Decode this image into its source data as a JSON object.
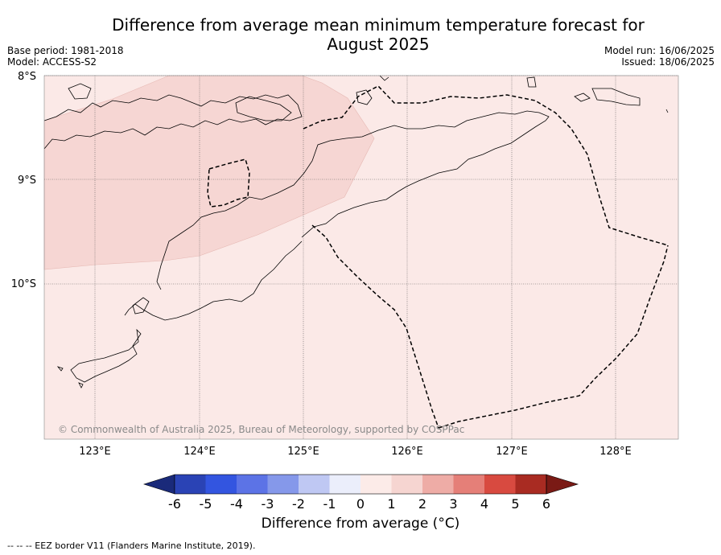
{
  "title": "Difference from average mean minimum temperature forecast for August 2025",
  "title_line1": "Difference from average mean minimum temperature forecast for",
  "title_line2": "August 2025",
  "meta_left": {
    "base_period": "Base period: 1981-2018",
    "model": "Model: ACCESS-S2"
  },
  "meta_right": {
    "model_run": "Model run: 16/06/2025",
    "issued": "Issued: 18/06/2025"
  },
  "map": {
    "lon_ticks": [
      "123°E",
      "124°E",
      "125°E",
      "126°E",
      "127°E",
      "128°E"
    ],
    "lat_ticks": [
      "8°S",
      "9°S",
      "10°S"
    ],
    "copyright": "© Commonwealth of Australia 2025, Bureau of Meteorology, supported by COSPPac",
    "background_color": "#fbe9e7",
    "anomaly_color": "#f6d6d3",
    "background_anomaly_range": "0 to 1",
    "anomaly_patch_range": "1 to 2"
  },
  "colorbar": {
    "label": "Difference from average (°C)",
    "label_text": "Difference from average (",
    "label_unit": "°C)",
    "ticks": [
      "-6",
      "-5",
      "-4",
      "-3",
      "-2",
      "-1",
      "0",
      "1",
      "2",
      "3",
      "4",
      "5",
      "6"
    ],
    "colors": [
      "#1a2a7a",
      "#2a43b5",
      "#3355e0",
      "#5c73e6",
      "#8598ea",
      "#bfc8f3",
      "#ebeefb",
      "#fcebe8",
      "#f6d5d1",
      "#eeaca6",
      "#e57f78",
      "#d84a40",
      "#a92b22",
      "#7a1a15"
    ]
  },
  "footnote": "-- -- -- EEZ border V11 (Flanders Marine Institute, 2019)."
}
